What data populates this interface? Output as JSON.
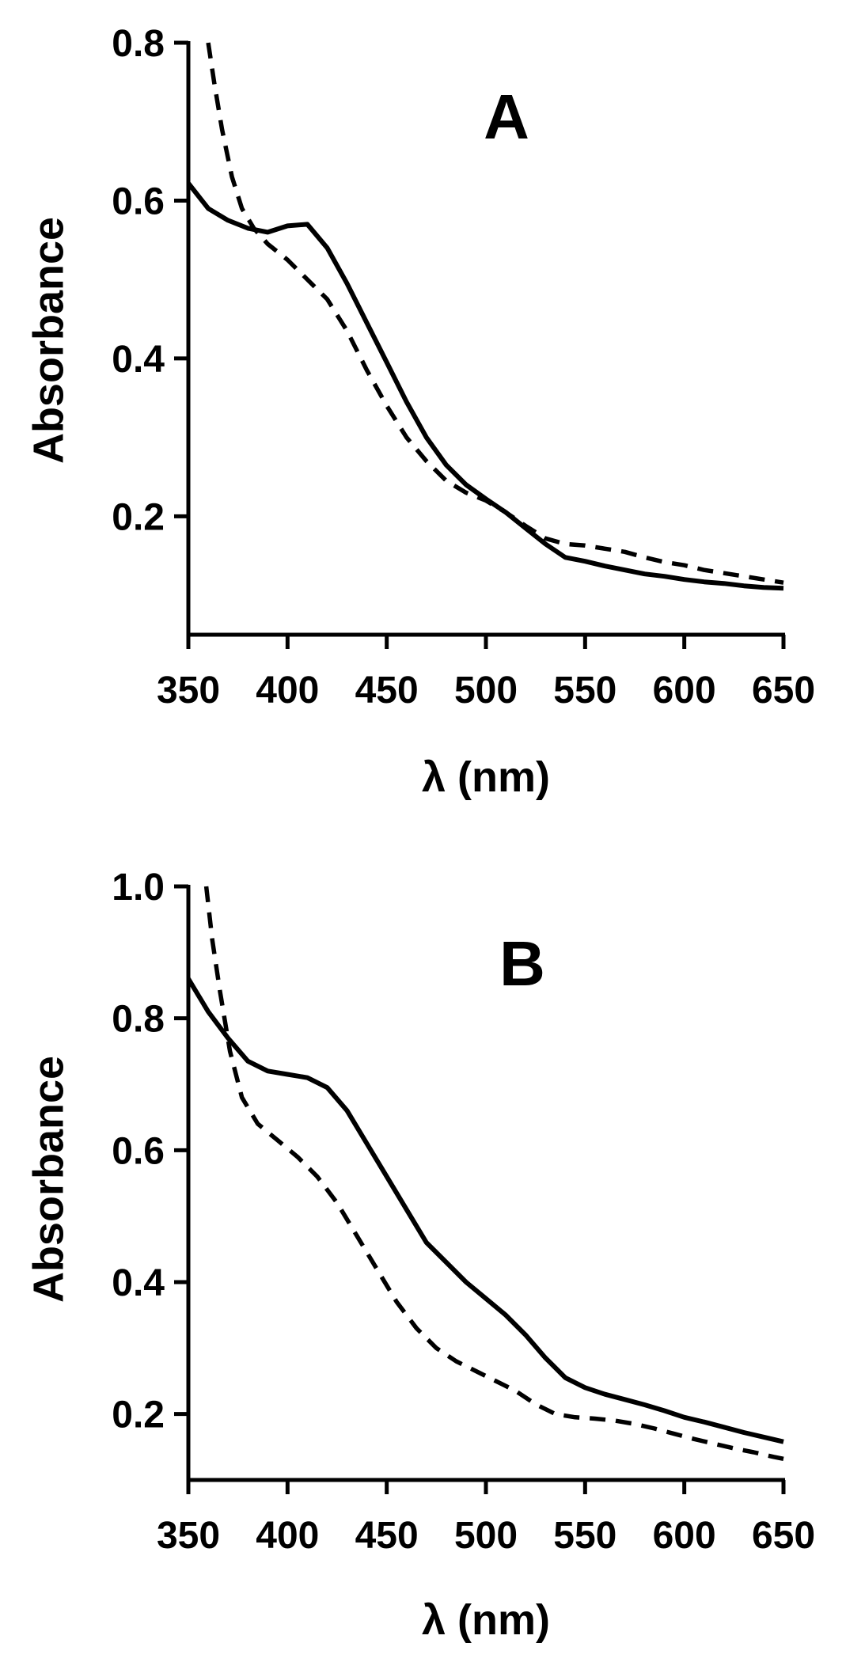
{
  "chart_data": [
    {
      "type": "line",
      "panel_label": "A",
      "xlabel": "λ (nm)",
      "ylabel": "Absorbance",
      "xlim": [
        350,
        650
      ],
      "ylim": [
        0.05,
        0.8
      ],
      "x_ticks": [
        350,
        400,
        450,
        500,
        550,
        600,
        650
      ],
      "y_ticks": [
        0.2,
        0.4,
        0.6,
        0.8
      ],
      "x_tick_labels": [
        "350",
        "400",
        "450",
        "500",
        "550",
        "600",
        "650"
      ],
      "y_tick_labels": [
        "0.2",
        "0.4",
        "0.6",
        "0.8"
      ],
      "grid": false,
      "series": [
        {
          "style": "solid",
          "color": "#000000",
          "points": [
            [
              350,
              0.622
            ],
            [
              360,
              0.59
            ],
            [
              370,
              0.575
            ],
            [
              380,
              0.565
            ],
            [
              390,
              0.56
            ],
            [
              400,
              0.568
            ],
            [
              410,
              0.57
            ],
            [
              420,
              0.54
            ],
            [
              430,
              0.495
            ],
            [
              440,
              0.445
            ],
            [
              450,
              0.395
            ],
            [
              460,
              0.345
            ],
            [
              470,
              0.3
            ],
            [
              480,
              0.265
            ],
            [
              490,
              0.24
            ],
            [
              500,
              0.222
            ],
            [
              510,
              0.205
            ],
            [
              520,
              0.185
            ],
            [
              530,
              0.165
            ],
            [
              540,
              0.148
            ],
            [
              550,
              0.143
            ],
            [
              560,
              0.137
            ],
            [
              570,
              0.132
            ],
            [
              580,
              0.127
            ],
            [
              590,
              0.124
            ],
            [
              600,
              0.12
            ],
            [
              610,
              0.117
            ],
            [
              620,
              0.115
            ],
            [
              630,
              0.112
            ],
            [
              640,
              0.11
            ],
            [
              650,
              0.109
            ]
          ]
        },
        {
          "style": "dashed",
          "color": "#000000",
          "points": [
            [
              360,
              0.8
            ],
            [
              363,
              0.75
            ],
            [
              367,
              0.69
            ],
            [
              372,
              0.63
            ],
            [
              377,
              0.59
            ],
            [
              383,
              0.565
            ],
            [
              390,
              0.545
            ],
            [
              400,
              0.525
            ],
            [
              410,
              0.5
            ],
            [
              420,
              0.475
            ],
            [
              430,
              0.435
            ],
            [
              440,
              0.385
            ],
            [
              450,
              0.34
            ],
            [
              460,
              0.3
            ],
            [
              470,
              0.27
            ],
            [
              480,
              0.245
            ],
            [
              490,
              0.23
            ],
            [
              500,
              0.22
            ],
            [
              510,
              0.205
            ],
            [
              520,
              0.188
            ],
            [
              530,
              0.172
            ],
            [
              540,
              0.165
            ],
            [
              550,
              0.163
            ],
            [
              560,
              0.159
            ],
            [
              570,
              0.155
            ],
            [
              580,
              0.148
            ],
            [
              590,
              0.142
            ],
            [
              600,
              0.138
            ],
            [
              610,
              0.132
            ],
            [
              620,
              0.128
            ],
            [
              630,
              0.124
            ],
            [
              640,
              0.12
            ],
            [
              650,
              0.116
            ]
          ]
        }
      ]
    },
    {
      "type": "line",
      "panel_label": "B",
      "xlabel": "λ (nm)",
      "ylabel": "Absorbance",
      "xlim": [
        350,
        650
      ],
      "ylim": [
        0.1,
        1.0
      ],
      "x_ticks": [
        350,
        400,
        450,
        500,
        550,
        600,
        650
      ],
      "y_ticks": [
        0.2,
        0.4,
        0.6,
        0.8,
        1.0
      ],
      "x_tick_labels": [
        "350",
        "400",
        "450",
        "500",
        "550",
        "600",
        "650"
      ],
      "y_tick_labels": [
        "0.2",
        "0.4",
        "0.6",
        "0.8",
        "1.0"
      ],
      "grid": false,
      "series": [
        {
          "style": "solid",
          "color": "#000000",
          "points": [
            [
              350,
              0.86
            ],
            [
              360,
              0.81
            ],
            [
              370,
              0.77
            ],
            [
              380,
              0.735
            ],
            [
              390,
              0.72
            ],
            [
              400,
              0.715
            ],
            [
              410,
              0.71
            ],
            [
              420,
              0.695
            ],
            [
              430,
              0.66
            ],
            [
              440,
              0.61
            ],
            [
              450,
              0.56
            ],
            [
              460,
              0.51
            ],
            [
              470,
              0.46
            ],
            [
              480,
              0.43
            ],
            [
              490,
              0.4
            ],
            [
              500,
              0.375
            ],
            [
              510,
              0.35
            ],
            [
              520,
              0.32
            ],
            [
              530,
              0.285
            ],
            [
              540,
              0.255
            ],
            [
              550,
              0.24
            ],
            [
              560,
              0.23
            ],
            [
              570,
              0.222
            ],
            [
              580,
              0.214
            ],
            [
              590,
              0.205
            ],
            [
              600,
              0.195
            ],
            [
              610,
              0.188
            ],
            [
              620,
              0.18
            ],
            [
              630,
              0.172
            ],
            [
              640,
              0.165
            ],
            [
              650,
              0.158
            ]
          ]
        },
        {
          "style": "dashed",
          "color": "#000000",
          "points": [
            [
              359,
              1.0
            ],
            [
              362,
              0.92
            ],
            [
              366,
              0.84
            ],
            [
              371,
              0.75
            ],
            [
              377,
              0.68
            ],
            [
              385,
              0.64
            ],
            [
              395,
              0.615
            ],
            [
              405,
              0.59
            ],
            [
              415,
              0.56
            ],
            [
              425,
              0.52
            ],
            [
              435,
              0.47
            ],
            [
              445,
              0.42
            ],
            [
              455,
              0.37
            ],
            [
              465,
              0.33
            ],
            [
              475,
              0.3
            ],
            [
              485,
              0.28
            ],
            [
              495,
              0.265
            ],
            [
              505,
              0.25
            ],
            [
              515,
              0.235
            ],
            [
              525,
              0.215
            ],
            [
              535,
              0.2
            ],
            [
              545,
              0.195
            ],
            [
              555,
              0.193
            ],
            [
              565,
              0.19
            ],
            [
              575,
              0.185
            ],
            [
              585,
              0.178
            ],
            [
              595,
              0.17
            ],
            [
              605,
              0.162
            ],
            [
              615,
              0.155
            ],
            [
              625,
              0.148
            ],
            [
              635,
              0.142
            ],
            [
              645,
              0.135
            ],
            [
              650,
              0.132
            ]
          ]
        }
      ]
    }
  ]
}
